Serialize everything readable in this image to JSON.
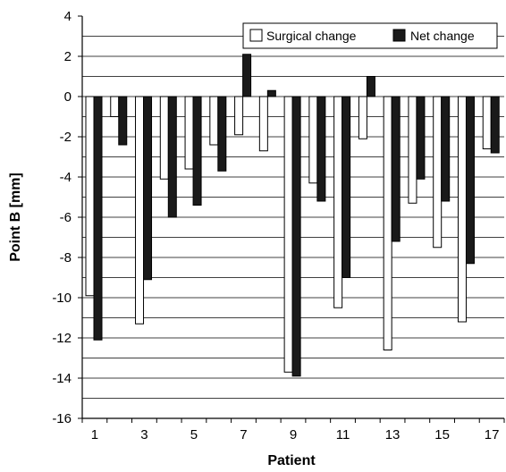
{
  "chart_data": {
    "type": "bar",
    "xlabel": "Patient",
    "ylabel": "Point B [mm]",
    "ylim": [
      -16,
      4
    ],
    "yticks": [
      4,
      2,
      0,
      -2,
      -4,
      -6,
      -8,
      -10,
      -12,
      -14,
      -16
    ],
    "minor_grid_step": 1,
    "categories": [
      "1",
      "2",
      "3",
      "4",
      "5",
      "6",
      "7",
      "8",
      "9",
      "10",
      "11",
      "12",
      "13",
      "14",
      "15",
      "16",
      "17"
    ],
    "xtick_labels": [
      "1",
      "",
      "3",
      "",
      "5",
      "",
      "7",
      "",
      "9",
      "",
      "11",
      "",
      "13",
      "",
      "15",
      "",
      "17"
    ],
    "legend_position": "top-right",
    "series": [
      {
        "name": "Surgical change",
        "color": "#ffffff",
        "values": [
          -9.9,
          -1.0,
          -11.3,
          -4.1,
          -3.6,
          -2.4,
          -1.9,
          -2.7,
          -13.7,
          -4.3,
          -10.5,
          -2.1,
          -12.6,
          -5.3,
          -7.5,
          -11.2,
          -2.6
        ]
      },
      {
        "name": "Net change",
        "color": "#1a1a1a",
        "values": [
          -12.1,
          -2.4,
          -9.1,
          -6.0,
          -5.4,
          -3.7,
          2.1,
          0.3,
          -13.9,
          -5.2,
          -9.0,
          1.0,
          -7.2,
          -4.1,
          -5.2,
          -8.3,
          -2.8
        ]
      }
    ]
  }
}
